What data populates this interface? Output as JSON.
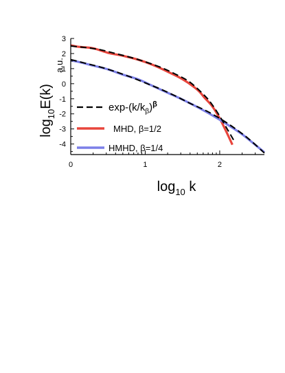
{
  "chart_data": {
    "type": "line",
    "xlabel": "log₁₀ k",
    "xlabel_parts": {
      "main": "log",
      "sub": "10",
      "rest": " k"
    },
    "ylabel_parts": {
      "main": "log",
      "sub": "10",
      "rest": "E(k)"
    },
    "unit_label": "a.u.",
    "xlim": [
      0,
      2.6
    ],
    "ylim": [
      -4.7,
      3
    ],
    "x_ticks": [
      0,
      1,
      2
    ],
    "x_tick_labels": [
      "0",
      "1",
      "2"
    ],
    "y_ticks": [
      3,
      2,
      1,
      0,
      -1,
      -2,
      -3,
      -4
    ],
    "y_tick_labels": [
      "3",
      "2",
      "1",
      "0",
      "-1",
      "-2",
      "-3",
      "-4"
    ],
    "grid": false,
    "legend_position": "left, below the curves",
    "series": [
      {
        "name": "exp-(k/kβ)β",
        "legend_parts": {
          "main": "exp-(k/k",
          "sub": "β",
          "rest": ")",
          "sup": "β"
        },
        "color": "#000000",
        "style": "dashed",
        "x": [
          0,
          0.2,
          0.4,
          0.6,
          0.8,
          1.0,
          1.2,
          1.4,
          1.6,
          1.8,
          1.9,
          2.0,
          2.1,
          2.2
        ],
        "y": [
          2.5,
          2.4,
          2.25,
          2.0,
          1.75,
          1.45,
          1.1,
          0.65,
          0.1,
          -0.8,
          -1.4,
          -2.15,
          -3.0,
          -3.85
        ]
      },
      {
        "name": "MHD, β=1/2",
        "color": "#e8453c",
        "style": "solid",
        "x": [
          0,
          0.1,
          0.3,
          0.5,
          0.7,
          0.9,
          1.1,
          1.3,
          1.5,
          1.7,
          1.8,
          1.9,
          2.0,
          2.1,
          2.17
        ],
        "y": [
          2.55,
          2.45,
          2.35,
          2.05,
          1.85,
          1.6,
          1.25,
          0.8,
          0.3,
          -0.4,
          -0.95,
          -1.5,
          -2.3,
          -3.3,
          -4.05
        ]
      },
      {
        "name": "exp-(k/kβ)β",
        "color": "#000000",
        "style": "dashed",
        "x": [
          0,
          0.2,
          0.4,
          0.6,
          0.8,
          1.0,
          1.2,
          1.4,
          1.6,
          1.8,
          2.0,
          2.2,
          2.4,
          2.6
        ],
        "y": [
          1.6,
          1.35,
          1.1,
          0.8,
          0.45,
          0.05,
          -0.35,
          -0.8,
          -1.3,
          -1.75,
          -2.3,
          -2.95,
          -3.7,
          -4.6
        ]
      },
      {
        "name": "HMHD, β=1/4",
        "color": "#7b7fe8",
        "style": "solid",
        "x": [
          0,
          0.1,
          0.3,
          0.5,
          0.7,
          0.9,
          1.1,
          1.3,
          1.5,
          1.7,
          1.9,
          2.1,
          2.3,
          2.5,
          2.6
        ],
        "y": [
          1.55,
          1.45,
          1.2,
          0.95,
          0.6,
          0.3,
          -0.15,
          -0.6,
          -1.05,
          -1.55,
          -2.1,
          -2.7,
          -3.35,
          -4.15,
          -4.55
        ]
      }
    ],
    "legend": [
      {
        "label_parts": {
          "main": "exp-(k/k",
          "sub": "β",
          "rest": ")",
          "sup": "β"
        },
        "color": "#000000",
        "style": "dashed"
      },
      {
        "label": "MHD,  β=1/2",
        "color": "#e8453c",
        "style": "solid"
      },
      {
        "label": "HMHD,  β=1/4",
        "color": "#7b7fe8",
        "style": "solid"
      }
    ]
  }
}
